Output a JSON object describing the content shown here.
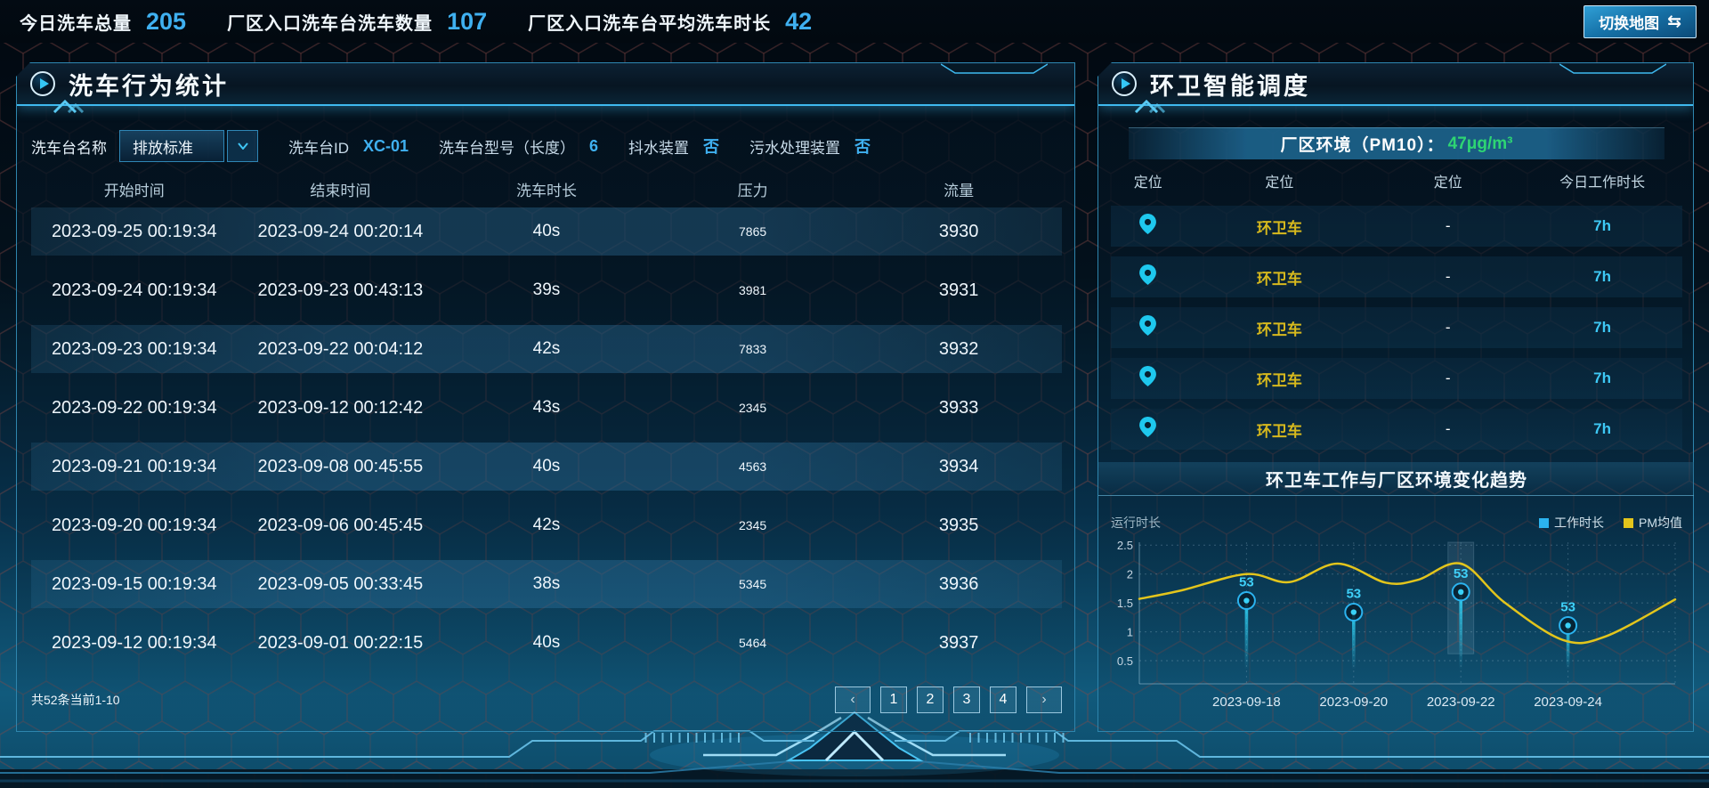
{
  "colors": {
    "accent_cyan": "#3fb9ef",
    "value_blue": "#3fb0f0",
    "pm_green": "#2ed573",
    "vehicle_yellow": "#d7b91d",
    "panel_border": "#2e85ad"
  },
  "top_bar": {
    "stats": [
      {
        "label": "今日洗车总量",
        "value": "205"
      },
      {
        "label": "厂区入口洗车台洗车数量",
        "value": "107"
      },
      {
        "label": "厂区入口洗车台平均洗车时长",
        "value": "42"
      }
    ],
    "map_toggle_label": "切换地图",
    "map_toggle_icon": "⇆"
  },
  "left_panel": {
    "title": "洗车行为统计",
    "filters": {
      "name_label": "洗车台名称",
      "name_value": "排放标准",
      "fields": [
        {
          "label": "洗车台ID",
          "value": "XC-01"
        },
        {
          "label": "洗车台型号（长度）",
          "value": "6"
        },
        {
          "label": "抖水装置",
          "value": "否"
        },
        {
          "label": "污水处理装置",
          "value": "否"
        }
      ]
    },
    "table": {
      "columns": [
        "开始时间",
        "结束时间",
        "洗车时长",
        "压力",
        "流量"
      ],
      "rows": [
        [
          "2023-09-25 00:19:34",
          "2023-09-24 00:20:14",
          "40s",
          "7865",
          "3930"
        ],
        [
          "2023-09-24 00:19:34",
          "2023-09-23 00:43:13",
          "39s",
          "3981",
          "3931"
        ],
        [
          "2023-09-23 00:19:34",
          "2023-09-22 00:04:12",
          "42s",
          "7833",
          "3932"
        ],
        [
          "2023-09-22 00:19:34",
          "2023-09-12 00:12:42",
          "43s",
          "2345",
          "3933"
        ],
        [
          "2023-09-21 00:19:34",
          "2023-09-08 00:45:55",
          "40s",
          "4563",
          "3934"
        ],
        [
          "2023-09-20 00:19:34",
          "2023-09-06 00:45:45",
          "42s",
          "2345",
          "3935"
        ],
        [
          "2023-09-15 00:19:34",
          "2023-09-05 00:33:45",
          "38s",
          "5345",
          "3936"
        ],
        [
          "2023-09-12 00:19:34",
          "2023-09-01 00:22:15",
          "40s",
          "5464",
          "3937"
        ]
      ]
    },
    "pagination": {
      "summary": "共52条当前1-10",
      "prev": "‹",
      "next": "›",
      "pages": [
        "1",
        "2",
        "3",
        "4"
      ]
    }
  },
  "right_panel": {
    "title": "环卫智能调度",
    "pm_banner": {
      "label": "厂区环境（PM10）：",
      "value": "47μg/m³",
      "value_color": "#2ed573"
    },
    "vehicle_table": {
      "columns": [
        "定位",
        "定位",
        "定位",
        "今日工作时长"
      ],
      "name_color": "#d7b91d",
      "rows": [
        {
          "pin": "location-pin",
          "name": "环卫车",
          "dash": "-",
          "hours": "7h"
        },
        {
          "pin": "location-pin",
          "name": "环卫车",
          "dash": "-",
          "hours": "7h"
        },
        {
          "pin": "location-pin",
          "name": "环卫车",
          "dash": "-",
          "hours": "7h"
        },
        {
          "pin": "location-pin",
          "name": "环卫车",
          "dash": "-",
          "hours": "7h"
        },
        {
          "pin": "location-pin",
          "name": "环卫车",
          "dash": "-",
          "hours": "7h"
        }
      ]
    },
    "trend_section_title": "环卫车工作与厂区环境变化趋势"
  },
  "chart_data": {
    "type": "line",
    "title": "环卫车工作与厂区环境变化趋势",
    "ylabel": "运行时长",
    "ylim": [
      0.1,
      2.55
    ],
    "yticks": [
      0.5,
      1,
      1.5,
      2,
      2.5
    ],
    "categories": [
      "2023-09-18",
      "2023-09-20",
      "2023-09-22",
      "2023-09-24"
    ],
    "category_x": [
      0.2,
      0.4,
      0.6,
      0.8
    ],
    "grid": "dotted",
    "legend_position": "top-right",
    "highlight_band": {
      "category": "2023-09-22",
      "x": 0.6,
      "half_width": 0.024,
      "to_value": 0.62
    },
    "series": [
      {
        "name": "工作时长",
        "type": "scatter",
        "color": "#2bb3ef",
        "x": [
          0.2,
          0.4,
          0.6,
          0.8
        ],
        "values": [
          1.54,
          1.34,
          1.69,
          1.11
        ],
        "point_labels": [
          "53",
          "53",
          "53",
          "53"
        ],
        "stem_to": 0.35
      },
      {
        "name": "PM均值",
        "type": "line",
        "color": "#e3c51c",
        "points": [
          [
            0,
            1.57
          ],
          [
            0.08,
            1.72
          ],
          [
            0.2,
            2.0
          ],
          [
            0.28,
            1.86
          ],
          [
            0.37,
            2.18
          ],
          [
            0.46,
            1.85
          ],
          [
            0.52,
            1.9
          ],
          [
            0.6,
            2.18
          ],
          [
            0.68,
            1.52
          ],
          [
            0.79,
            0.86
          ],
          [
            0.87,
            0.92
          ],
          [
            1,
            1.56
          ]
        ]
      }
    ]
  }
}
